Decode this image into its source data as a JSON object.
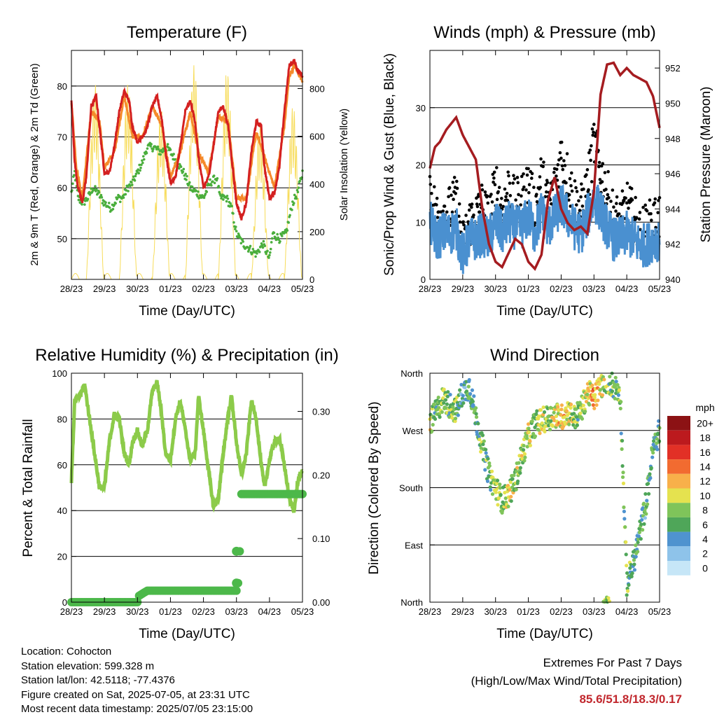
{
  "colors": {
    "temp_red": "#d42020",
    "temp_orange": "#f58a2a",
    "dewpoint_green": "#4aae3c",
    "solar_yellow": "#f7dc5a",
    "wind_black": "#000000",
    "wind_blue": "#4a90d0",
    "pressure_maroon": "#a51c20",
    "rh_lightgreen": "#8ccb4a",
    "precip_green": "#4cb84a",
    "extremes_red": "#c1272d"
  },
  "time_ticks": [
    "28/23",
    "29/23",
    "30/23",
    "01/23",
    "02/23",
    "03/23",
    "04/23",
    "05/23"
  ],
  "chart_data": [
    {
      "type": "line",
      "title": "Temperature (F)",
      "xlabel": "Time (Day/UTC)",
      "ylabel": "2m & 9m T (Red, Orange) & 2m Td (Green)",
      "y2label": "Solar Insolation (Yellow)",
      "x_ticks": [
        "28/23",
        "29/23",
        "30/23",
        "01/23",
        "02/23",
        "03/23",
        "04/23",
        "05/23"
      ],
      "ylim": [
        42,
        87
      ],
      "y_ticks": [
        50,
        60,
        70,
        80
      ],
      "y2lim": [
        0,
        960
      ],
      "y2_ticks": [
        0,
        200,
        400,
        600,
        800
      ],
      "series": [
        {
          "name": "2m T",
          "color": "#d42020",
          "x": [
            0,
            0.1,
            0.2,
            0.33,
            0.45,
            0.6,
            0.75,
            0.85,
            1.0,
            1.15,
            1.3,
            1.45,
            1.6,
            1.75,
            1.85,
            2.0,
            2.15,
            2.3,
            2.45,
            2.6,
            2.75,
            2.85,
            3.0,
            3.15,
            3.3,
            3.45,
            3.6,
            3.75,
            3.85,
            4.0,
            4.15,
            4.3,
            4.45,
            4.6,
            4.75,
            4.85,
            5.0,
            5.15,
            5.3,
            5.45,
            5.6,
            5.75,
            5.85,
            6.0,
            6.15,
            6.3,
            6.45,
            6.6,
            6.75,
            6.85,
            7.0
          ],
          "values": [
            77.5,
            65,
            60,
            57,
            62,
            76,
            78,
            72,
            63,
            63,
            68,
            75,
            79,
            77,
            72,
            69,
            70,
            72,
            76,
            78,
            73,
            67,
            61,
            62,
            68,
            75,
            77,
            73,
            66,
            60,
            62,
            68,
            75,
            76,
            72,
            66,
            57,
            54,
            57,
            67,
            73,
            72,
            64,
            58,
            59,
            64,
            75,
            84,
            85,
            83,
            82
          ]
        },
        {
          "name": "9m T",
          "color": "#f58a2a",
          "x": [
            0,
            0.15,
            0.33,
            0.6,
            0.85,
            1.0,
            1.3,
            1.6,
            1.85,
            2.15,
            2.45,
            2.75,
            3.0,
            3.3,
            3.6,
            3.85,
            4.15,
            4.45,
            4.75,
            5.0,
            5.3,
            5.6,
            5.85,
            6.15,
            6.45,
            6.6,
            6.75,
            7.0
          ],
          "values": [
            77,
            64,
            58,
            75,
            73,
            64,
            67,
            78,
            70,
            70,
            76,
            72,
            62,
            67,
            75,
            67,
            63,
            74,
            73,
            58,
            58,
            71,
            66,
            60,
            72,
            82,
            84,
            81
          ]
        },
        {
          "name": "2m Td",
          "color": "#4aae3c",
          "x": [
            0,
            0.1,
            0.2,
            0.35,
            0.5,
            0.65,
            0.8,
            1.0,
            1.2,
            1.4,
            1.55,
            1.7,
            1.85,
            2.0,
            2.15,
            2.3,
            2.5,
            2.7,
            2.9,
            3.0,
            3.2,
            3.4,
            3.6,
            3.8,
            4.0,
            4.2,
            4.4,
            4.5,
            4.7,
            4.85,
            5.0,
            5.2,
            5.4,
            5.6,
            5.8,
            6.0,
            6.1,
            6.3,
            6.5,
            6.7,
            6.85,
            7.0
          ],
          "values": [
            59,
            63,
            58,
            57,
            58,
            60,
            59,
            57,
            56,
            58,
            58,
            60,
            61,
            63,
            65,
            68,
            68,
            67,
            68,
            67,
            65,
            63,
            60,
            59,
            58,
            61,
            62,
            58,
            58,
            56,
            51,
            49,
            48,
            47,
            49,
            46,
            51,
            50,
            51,
            57,
            59,
            63
          ]
        },
        {
          "name": "Solar Insolation",
          "axis": "y2",
          "color": "#f7dc5a",
          "daily_peak": [
            820,
            820,
            720,
            900,
            880,
            650,
            730,
            920
          ]
        }
      ]
    },
    {
      "type": "line",
      "title": "Winds (mph) & Pressure (mb)",
      "xlabel": "Time (Day/UTC)",
      "ylabel": "Sonic/Prop Wind & Gust (Blue, Black)",
      "y2label": "Station Pressure (Maroon)",
      "x_ticks": [
        "28/23",
        "29/23",
        "30/23",
        "01/23",
        "02/23",
        "03/23",
        "04/23",
        "05/23"
      ],
      "ylim": [
        0,
        40
      ],
      "y_ticks": [
        0,
        10,
        20,
        30
      ],
      "y2lim": [
        940,
        953
      ],
      "y2_ticks": [
        940,
        942,
        944,
        946,
        948,
        950,
        952
      ],
      "series": [
        {
          "name": "Gust",
          "color": "#000000",
          "x": [
            0,
            0.2,
            0.4,
            0.6,
            0.8,
            1.0,
            1.2,
            1.4,
            1.6,
            1.8,
            2.0,
            2.2,
            2.4,
            2.6,
            2.8,
            3.0,
            3.2,
            3.4,
            3.6,
            3.8,
            4.0,
            4.2,
            4.4,
            4.6,
            4.8,
            5.0,
            5.2,
            5.4,
            5.6,
            5.8,
            6.0,
            6.2,
            6.4,
            6.6,
            6.8,
            7.0
          ],
          "values": [
            16,
            11,
            12,
            12,
            14,
            6,
            10,
            11,
            13,
            10,
            17,
            12,
            16,
            13,
            14,
            17,
            12,
            18,
            13,
            16,
            22,
            18,
            14,
            12,
            16,
            24,
            19,
            15,
            11,
            10,
            13,
            11,
            8,
            9,
            10,
            11
          ]
        },
        {
          "name": "Sonic/Prop Wind",
          "color": "#4a90d0",
          "x": [
            0,
            0.2,
            0.4,
            0.6,
            0.8,
            1.0,
            1.2,
            1.4,
            1.6,
            1.8,
            2.0,
            2.2,
            2.4,
            2.6,
            2.8,
            3.0,
            3.2,
            3.4,
            3.6,
            3.8,
            4.0,
            4.2,
            4.4,
            4.6,
            4.8,
            5.0,
            5.2,
            5.4,
            5.6,
            5.8,
            6.0,
            6.2,
            6.4,
            6.6,
            6.8,
            7.0
          ],
          "values": [
            10,
            7,
            8,
            8,
            9,
            4,
            7,
            7,
            8,
            7,
            10,
            8,
            10,
            9,
            9,
            11,
            8,
            12,
            9,
            11,
            13,
            11,
            9,
            8,
            11,
            14,
            12,
            9,
            7,
            7,
            8,
            7,
            6,
            6,
            7,
            7
          ]
        },
        {
          "name": "Station Pressure",
          "axis": "y2",
          "color": "#a51c20",
          "x": [
            0,
            0.15,
            0.3,
            0.5,
            0.8,
            1.0,
            1.2,
            1.4,
            1.6,
            1.8,
            2.0,
            2.2,
            2.4,
            2.6,
            2.8,
            3.0,
            3.2,
            3.4,
            3.6,
            3.8,
            4.0,
            4.2,
            4.4,
            4.6,
            4.8,
            5.0,
            5.2,
            5.4,
            5.6,
            5.8,
            6.0,
            6.2,
            6.4,
            6.6,
            6.8,
            7.0
          ],
          "values": [
            946.3,
            947.5,
            947.8,
            948.5,
            949.2,
            948.2,
            947.5,
            946.8,
            944,
            942,
            941,
            940.7,
            941.5,
            942.3,
            942,
            941,
            940.6,
            941.4,
            944.5,
            945.8,
            944,
            943.2,
            942.8,
            943,
            942.6,
            945,
            950.5,
            952.2,
            952.3,
            951.6,
            952,
            951.6,
            951.4,
            951.2,
            950.4,
            948.6
          ]
        }
      ]
    },
    {
      "type": "line",
      "title": "Relative Humidity (%) & Precipitation (in)",
      "xlabel": "Time (Day/UTC)",
      "ylabel": "Percent & Total Rainfall",
      "x_ticks": [
        "28/23",
        "29/23",
        "30/23",
        "01/23",
        "02/23",
        "03/23",
        "04/23",
        "05/23"
      ],
      "ylim": [
        0,
        100
      ],
      "y_ticks": [
        0,
        20,
        40,
        60,
        80,
        100
      ],
      "y2lim": [
        0,
        0.36
      ],
      "y2_ticks": [
        "0.00",
        "0.10",
        "0.20",
        "0.30"
      ],
      "series": [
        {
          "name": "Relative Humidity",
          "color": "#8ccb4a",
          "x": [
            0,
            0.1,
            0.25,
            0.4,
            0.55,
            0.7,
            0.85,
            1.0,
            1.15,
            1.3,
            1.45,
            1.6,
            1.75,
            1.85,
            2.0,
            2.15,
            2.3,
            2.45,
            2.6,
            2.75,
            2.85,
            3.0,
            3.15,
            3.3,
            3.45,
            3.6,
            3.75,
            3.85,
            4.0,
            4.15,
            4.3,
            4.45,
            4.6,
            4.75,
            4.85,
            5.0,
            5.15,
            5.3,
            5.45,
            5.6,
            5.75,
            5.85,
            6.0,
            6.15,
            6.3,
            6.45,
            6.6,
            6.75,
            6.85,
            7.0
          ],
          "values": [
            53,
            88,
            90,
            95,
            80,
            65,
            50,
            50,
            70,
            82,
            80,
            65,
            60,
            70,
            75,
            68,
            75,
            92,
            96,
            80,
            65,
            62,
            80,
            88,
            75,
            62,
            65,
            90,
            75,
            58,
            42,
            45,
            65,
            82,
            90,
            70,
            55,
            65,
            88,
            80,
            60,
            50,
            62,
            70,
            72,
            60,
            45,
            40,
            52,
            58
          ]
        },
        {
          "name": "Total Precipitation",
          "axis": "y2",
          "color": "#4cb84a",
          "x": [
            0,
            2.0,
            2.05,
            2.2,
            2.3,
            5.0,
            5.05,
            5.1,
            5.12,
            5.15,
            7.0
          ],
          "values": [
            0,
            0,
            0.01,
            0.015,
            0.018,
            0.018,
            0.03,
            0.08,
            0.17,
            0.17,
            0.17
          ]
        }
      ]
    },
    {
      "type": "scatter",
      "title": "Wind Direction",
      "xlabel": "Time (Day/UTC)",
      "ylabel": "Direction (Colored By Speed)",
      "x_ticks": [
        "28/23",
        "29/23",
        "30/23",
        "01/23",
        "02/23",
        "03/23",
        "04/23",
        "05/23"
      ],
      "y_ticks": [
        "North",
        "East",
        "South",
        "West",
        "North"
      ],
      "ylim": [
        0,
        360
      ],
      "legend_title": "mph",
      "legend_labels": [
        "0",
        "2",
        "4",
        "6",
        "8",
        "10",
        "12",
        "14",
        "16",
        "18",
        "20+"
      ],
      "legend_colors": [
        "#c6e6f7",
        "#8ec3ea",
        "#4f93cf",
        "#4fa659",
        "#7fc45a",
        "#e5e24f",
        "#f8b04a",
        "#f26b30",
        "#e23026",
        "#bc1a1e",
        "#8c1214"
      ],
      "direction_track": {
        "x": [
          0,
          0.2,
          0.4,
          0.6,
          0.8,
          1.0,
          1.2,
          1.4,
          1.6,
          1.8,
          2.0,
          2.2,
          2.4,
          2.6,
          2.8,
          3.0,
          3.2,
          3.4,
          3.6,
          3.8,
          4.0,
          4.2,
          4.4,
          4.6,
          4.8,
          5.0,
          5.2,
          5.4,
          5.6,
          5.8,
          6.0,
          6.2,
          6.4,
          6.6,
          6.8,
          7.0
        ],
        "values": [
          280,
          300,
          320,
          310,
          300,
          330,
          340,
          290,
          245,
          200,
          180,
          160,
          170,
          190,
          230,
          260,
          280,
          285,
          290,
          295,
          290,
          300,
          290,
          300,
          330,
          320,
          340,
          350,
          340,
          330,
          30,
          60,
          110,
          160,
          240,
          270
        ]
      }
    }
  ],
  "info": {
    "location": "Location: Cohocton",
    "elevation": "Station elevation: 599.328 m",
    "latlon": "Station lat/lon: 42.5118; -77.4376",
    "created": "Figure created on Sat, 2025-07-05, at 23:31 UTC",
    "recent": "Most recent data timestamp: 2025/07/05 23:15:00"
  },
  "extremes": {
    "line1": "Extremes For Past 7 Days",
    "line2": "(High/Low/Max Wind/Total Precipitation)",
    "values": "85.6/51.8/18.3/0.17"
  }
}
